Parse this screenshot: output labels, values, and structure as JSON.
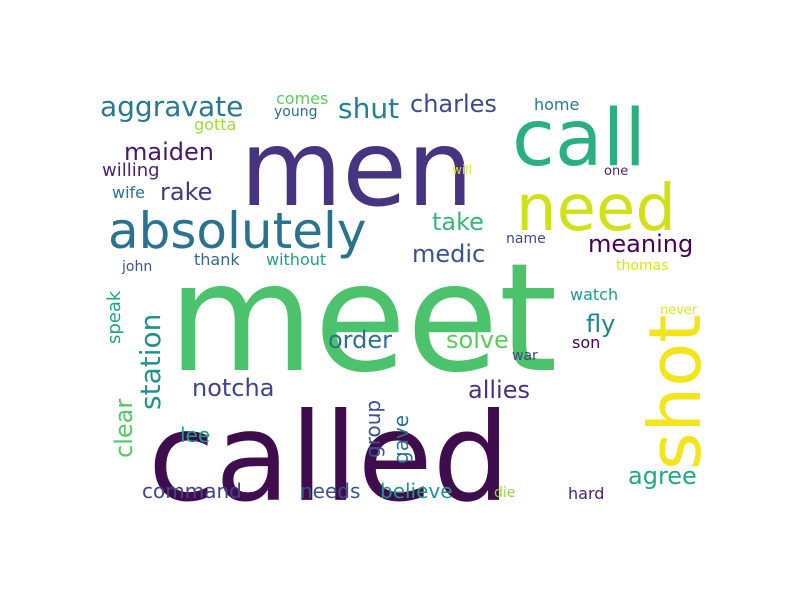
{
  "words": [
    {
      "text": "meet",
      "color": "#4cc26c"
    },
    {
      "text": "called",
      "color": "#3f0d4e"
    },
    {
      "text": "men",
      "color": "#463480"
    },
    {
      "text": "call",
      "color": "#2aaf7f"
    },
    {
      "text": "need",
      "color": "#d0e11c"
    },
    {
      "text": "shot",
      "color": "#f2e51d"
    },
    {
      "text": "absolutely",
      "color": "#2c728e"
    },
    {
      "text": "aggravate",
      "color": "#2a788e"
    },
    {
      "text": "shut",
      "color": "#277f8e"
    },
    {
      "text": "charles",
      "color": "#3e4a89"
    },
    {
      "text": "maiden",
      "color": "#481769"
    },
    {
      "text": "rake",
      "color": "#453781"
    },
    {
      "text": "take",
      "color": "#35b779"
    },
    {
      "text": "medic",
      "color": "#3b528b"
    },
    {
      "text": "meaning",
      "color": "#440154"
    },
    {
      "text": "station",
      "color": "#21918c"
    },
    {
      "text": "notcha",
      "color": "#414487"
    },
    {
      "text": "allies",
      "color": "#46337e"
    },
    {
      "text": "clear",
      "color": "#54c568"
    },
    {
      "text": "order",
      "color": "#2d708e"
    },
    {
      "text": "solve",
      "color": "#5ec962"
    },
    {
      "text": "fly",
      "color": "#26828e"
    },
    {
      "text": "group",
      "color": "#3b528b"
    },
    {
      "text": "gave",
      "color": "#2c728e"
    },
    {
      "text": "agree",
      "color": "#22a884"
    },
    {
      "text": "speak",
      "color": "#20a386"
    },
    {
      "text": "lee",
      "color": "#1fa187"
    },
    {
      "text": "command",
      "color": "#414487"
    },
    {
      "text": "needs",
      "color": "#3b528b"
    },
    {
      "text": "believe",
      "color": "#1f968b"
    },
    {
      "text": "comes",
      "color": "#5ec962"
    },
    {
      "text": "young",
      "color": "#2f6c8e"
    },
    {
      "text": "gotta",
      "color": "#a0da39"
    },
    {
      "text": "home",
      "color": "#2a788e"
    },
    {
      "text": "willing",
      "color": "#482475"
    },
    {
      "text": "wife",
      "color": "#2d708e"
    },
    {
      "text": "will",
      "color": "#d8e219"
    },
    {
      "text": "one",
      "color": "#482878"
    },
    {
      "text": "name",
      "color": "#3e4989"
    },
    {
      "text": "thank",
      "color": "#31688e"
    },
    {
      "text": "without",
      "color": "#1f9e89"
    },
    {
      "text": "john",
      "color": "#3b528b"
    },
    {
      "text": "thomas",
      "color": "#dde318"
    },
    {
      "text": "watch",
      "color": "#1f9a8a"
    },
    {
      "text": "never",
      "color": "#e5e419"
    },
    {
      "text": "son",
      "color": "#440154"
    },
    {
      "text": "war",
      "color": "#414487"
    },
    {
      "text": "die",
      "color": "#90d743"
    },
    {
      "text": "hard",
      "color": "#482475"
    }
  ]
}
